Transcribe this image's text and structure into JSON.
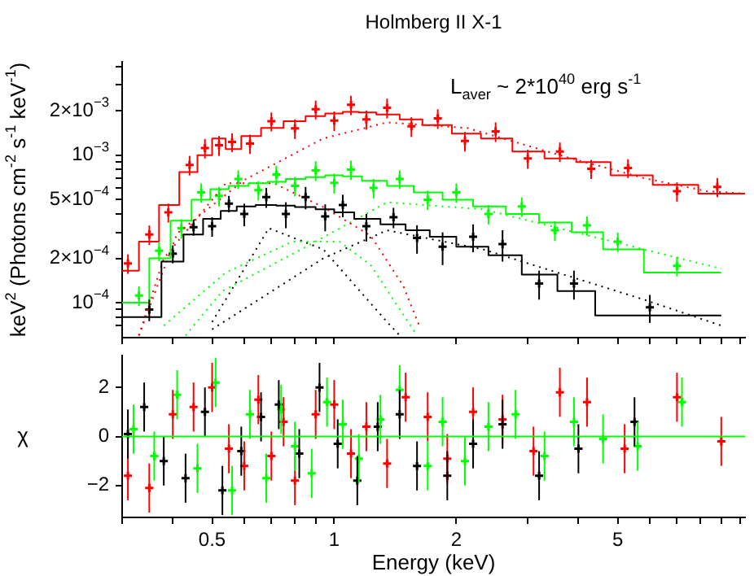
{
  "chart_data": [
    {
      "type": "line",
      "title": "Holmberg II X-1",
      "ylabel": "keV$^{2}$ (Photons cm$^{-2}$ s$^{-1}$ keV$^{-1}$)",
      "annotations": [
        "L$_{aver}$ ~ 2*10$^{40}$ erg s$^{-1}$"
      ],
      "log": "xy",
      "tick_labels": "y",
      "xlim": [
        0.3,
        10.3
      ],
      "xticks": [
        {
          "value": 0.3,
          "label": null
        },
        {
          "value": 0.4,
          "label": null
        },
        {
          "value": 0.5,
          "label": null
        },
        {
          "value": 0.6,
          "label": null
        },
        {
          "value": 0.7,
          "label": null
        },
        {
          "value": 0.8,
          "label": null
        },
        {
          "value": 0.9,
          "label": null
        },
        {
          "value": 1,
          "label": null
        },
        {
          "value": 2,
          "label": null
        },
        {
          "value": 3,
          "label": null
        },
        {
          "value": 4,
          "label": null
        },
        {
          "value": 5,
          "label": null
        },
        {
          "value": 6,
          "label": null
        },
        {
          "value": 7,
          "label": null
        },
        {
          "value": 8,
          "label": null
        },
        {
          "value": 9,
          "label": null
        },
        {
          "value": 10,
          "label": null
        }
      ],
      "ylim": [
        5.8e-05,
        0.0043
      ],
      "yticks": [
        {
          "value": 7e-05,
          "label": null
        },
        {
          "value": 8e-05,
          "label": null
        },
        {
          "value": 9e-05,
          "label": null
        },
        {
          "value": 0.0001,
          "label": "10$^{−4}$"
        },
        {
          "value": 0.0002,
          "label": "2×10$^{−4}$"
        },
        {
          "value": 0.0003,
          "label": null
        },
        {
          "value": 0.0004,
          "label": null
        },
        {
          "value": 0.0005,
          "label": "5×10$^{−4}$"
        },
        {
          "value": 0.0006,
          "label": null
        },
        {
          "value": 0.0007,
          "label": null
        },
        {
          "value": 0.0008,
          "label": null
        },
        {
          "value": 0.0009,
          "label": null
        },
        {
          "value": 0.001,
          "label": "10$^{−3}$"
        },
        {
          "value": 0.002,
          "label": "2×10$^{−3}$"
        },
        {
          "value": 0.003,
          "label": null
        },
        {
          "value": 0.004,
          "label": null
        }
      ],
      "series": [
        {
          "color": "#ff0000",
          "x": [
            0.3,
            0.33,
            0.33,
            0.37,
            0.37,
            0.415,
            0.415,
            0.46,
            0.46,
            0.5,
            0.5,
            0.54,
            0.54,
            0.59,
            0.59,
            0.66,
            0.66,
            0.75,
            0.75,
            0.85,
            0.85,
            0.95,
            0.95,
            1.05,
            1.05,
            1.15,
            1.15,
            1.27,
            1.27,
            1.45,
            1.45,
            1.65,
            1.65,
            1.95,
            1.95,
            2.3,
            2.3,
            2.75,
            2.75,
            3.3,
            3.3,
            3.95,
            3.95,
            4.8,
            4.8,
            6.1,
            6.1,
            7.9,
            7.9,
            10.3
          ],
          "values": [
            0.000165,
            0.000165,
            0.00026,
            0.00026,
            0.00046,
            0.00046,
            0.00077,
            0.00077,
            0.001,
            0.001,
            0.0013,
            0.0013,
            0.0011,
            0.0011,
            0.00135,
            0.00135,
            0.00153,
            0.00153,
            0.0017,
            0.0017,
            0.00184,
            0.00184,
            0.00192,
            0.00192,
            0.00197,
            0.00197,
            0.00195,
            0.00195,
            0.00189,
            0.00189,
            0.00175,
            0.00175,
            0.0016,
            0.0016,
            0.0014,
            0.0014,
            0.0013,
            0.0013,
            0.00106,
            0.00106,
            0.00095,
            0.00095,
            0.0009,
            0.0009,
            0.00073,
            0.00073,
            0.00063,
            0.00063,
            0.00055,
            0.00055
          ]
        },
        {
          "color": "#00ff00",
          "x": [
            0.3,
            0.35,
            0.35,
            0.395,
            0.395,
            0.445,
            0.445,
            0.495,
            0.495,
            0.55,
            0.55,
            0.615,
            0.615,
            0.685,
            0.685,
            0.76,
            0.76,
            0.85,
            0.85,
            0.95,
            0.95,
            1.05,
            1.05,
            1.17,
            1.17,
            1.35,
            1.35,
            1.57,
            1.57,
            1.85,
            1.85,
            2.2,
            2.2,
            2.65,
            2.65,
            3.2,
            3.2,
            3.85,
            3.85,
            4.6,
            4.6,
            5.8,
            5.8,
            9.0
          ],
          "values": [
            0.0001,
            0.0001,
            0.0002,
            0.0002,
            0.00036,
            0.00036,
            0.0005,
            0.0005,
            0.00059,
            0.00059,
            0.00062,
            0.00062,
            0.000645,
            0.000645,
            0.00066,
            0.00066,
            0.00069,
            0.00069,
            0.00071,
            0.00071,
            0.00073,
            0.00073,
            0.00072,
            0.00072,
            0.00067,
            0.00067,
            0.00062,
            0.00062,
            0.00056,
            0.00056,
            0.0005,
            0.0005,
            0.00045,
            0.00045,
            0.0004,
            0.0004,
            0.00035,
            0.00035,
            0.0003,
            0.0003,
            0.00023,
            0.00023,
            0.00016,
            0.00016
          ]
        },
        {
          "color": "#000000",
          "x": [
            0.3,
            0.375,
            0.375,
            0.425,
            0.425,
            0.475,
            0.475,
            0.525,
            0.525,
            0.575,
            0.575,
            0.64,
            0.64,
            0.72,
            0.72,
            0.8,
            0.8,
            0.9,
            0.9,
            1.0,
            1.0,
            1.12,
            1.12,
            1.3,
            1.3,
            1.5,
            1.5,
            1.72,
            1.72,
            2.0,
            2.0,
            2.4,
            2.4,
            2.9,
            2.9,
            3.55,
            3.55,
            4.4,
            4.4,
            9.0
          ],
          "values": [
            8e-05,
            8e-05,
            0.00019,
            0.00019,
            0.00029,
            0.00029,
            0.00037,
            0.00037,
            0.00042,
            0.00042,
            0.00045,
            0.00045,
            0.00046,
            0.00046,
            0.000455,
            0.000455,
            0.000445,
            0.000445,
            0.00043,
            0.00043,
            0.00041,
            0.00041,
            0.00037,
            0.00037,
            0.00034,
            0.00034,
            0.00031,
            0.00031,
            0.00028,
            0.00028,
            0.00024,
            0.00024,
            0.00021,
            0.00021,
            0.000155,
            0.000155,
            0.00012,
            0.00012,
            8.2e-05,
            8.2e-05
          ]
        },
        {
          "type": "line",
          "line_style": "dotted",
          "color": "#ff0000",
          "x": [
            0.33,
            0.38,
            0.54,
            0.71,
            0.94,
            1.23,
            1.48,
            1.62
          ],
          "values": [
            6e-05,
            0.0002,
            0.000645,
            0.000645,
            0.000445,
            0.000285,
            0.00013,
            7e-05
          ]
        },
        {
          "type": "line",
          "line_style": "dotted",
          "color": "#ff0000",
          "x": [
            0.33,
            0.41,
            0.6,
            0.94,
            1.35,
            2.13,
            3.7,
            5.8,
            8.3,
            10.3
          ],
          "values": [
            6e-05,
            0.000295,
            0.00068,
            0.0013,
            0.00167,
            0.00153,
            0.00098,
            0.0007,
            0.00057,
            0.00055
          ]
        },
        {
          "type": "line",
          "line_style": "dotted",
          "color": "#00ff00",
          "x": [
            0.38,
            0.54,
            0.79,
            1.03,
            1.23,
            1.6
          ],
          "values": [
            7e-05,
            0.00016,
            0.00026,
            0.00026,
            0.00018,
            6e-05
          ]
        },
        {
          "type": "line",
          "line_style": "dotted",
          "color": "#00ff00",
          "x": [
            0.43,
            0.53,
            0.83,
            1.35,
            2.33,
            5.8,
            9.0
          ],
          "values": [
            6e-05,
            0.00012,
            0.00023,
            0.00048,
            0.00043,
            0.00023,
            0.00017
          ]
        },
        {
          "type": "line",
          "line_style": "dotted",
          "color": "#000000",
          "x": [
            0.5,
            0.69,
            0.94,
            1.35,
            1.45
          ],
          "values": [
            7.4e-05,
            0.00032,
            0.00023,
            7.4e-05,
            6e-05
          ]
        },
        {
          "type": "line",
          "line_style": "dotted",
          "color": "#000000",
          "x": [
            0.5,
            0.94,
            1.35,
            2.33,
            5.8,
            9.0
          ],
          "values": [
            6.6e-05,
            0.0002,
            0.00031,
            0.00023,
            0.000105,
            7e-05
          ]
        },
        {
          "type": "scatter",
          "marker": "cross",
          "color": "#ff0000",
          "x": [
            0.31,
            0.35,
            0.39,
            0.44,
            0.48,
            0.52,
            0.56,
            0.62,
            0.7,
            0.8,
            0.9,
            1.0,
            1.1,
            1.2,
            1.35,
            1.55,
            1.8,
            2.1,
            2.5,
            3.0,
            3.6,
            4.3,
            5.3,
            7.0,
            8.8
          ],
          "values": [
            0.000185,
            0.00029,
            0.00041,
            0.00086,
            0.00112,
            0.00117,
            0.00123,
            0.0012,
            0.0017,
            0.00152,
            0.00205,
            0.00172,
            0.0022,
            0.00175,
            0.0021,
            0.00157,
            0.00178,
            0.00125,
            0.00145,
            0.00095,
            0.00106,
            0.00081,
            0.00082,
            0.00057,
            0.00061
          ],
          "errors": [
            2.8e-05,
            4.4e-05,
            6e-05,
            0.00013,
            0.00017,
            0.00018,
            0.00018,
            0.00018,
            0.00025,
            0.00023,
            0.0003,
            0.00026,
            0.00033,
            0.00026,
            0.00032,
            0.00024,
            0.00027,
            0.00019,
            0.00022,
            0.00014,
            0.00016,
            0.00012,
            0.00012,
            8.5e-05,
            9e-05
          ]
        },
        {
          "type": "scatter",
          "marker": "cross",
          "color": "#00ff00",
          "x": [
            0.33,
            0.37,
            0.42,
            0.47,
            0.52,
            0.58,
            0.65,
            0.72,
            0.8,
            0.9,
            1.0,
            1.1,
            1.25,
            1.45,
            1.7,
            2.0,
            2.4,
            2.9,
            3.5,
            4.2,
            5.0,
            7.0
          ],
          "values": [
            0.000112,
            0.000225,
            0.00032,
            0.00056,
            0.00053,
            0.00069,
            0.00058,
            0.00074,
            0.00062,
            0.00079,
            0.00065,
            0.0008,
            0.0006,
            0.00069,
            0.0005,
            0.00056,
            0.0004,
            0.00045,
            0.00031,
            0.000335,
            0.00026,
            0.000178
          ],
          "errors": [
            1.7e-05,
            3.4e-05,
            4.8e-05,
            8.4e-05,
            8e-05,
            0.0001,
            8.7e-05,
            0.00011,
            9.3e-05,
            0.00012,
            0.0001,
            0.00012,
            9e-05,
            0.0001,
            7.5e-05,
            8.4e-05,
            6e-05,
            6.8e-05,
            4.7e-05,
            5e-05,
            3.9e-05,
            2.7e-05
          ]
        },
        {
          "type": "scatter",
          "marker": "cross",
          "color": "#000000",
          "x": [
            0.35,
            0.4,
            0.45,
            0.5,
            0.55,
            0.6,
            0.68,
            0.76,
            0.85,
            0.95,
            1.05,
            1.2,
            1.4,
            1.6,
            1.85,
            2.2,
            2.6,
            3.2,
            3.9,
            6.0
          ],
          "values": [
            9e-05,
            0.000215,
            0.000325,
            0.00033,
            0.00047,
            0.0004,
            0.00052,
            0.0004,
            0.00052,
            0.000385,
            0.00046,
            0.00033,
            0.00038,
            0.000275,
            0.00024,
            0.00028,
            0.00025,
            0.000135,
            0.000135,
            9.3e-05
          ],
          "errors": [
            1.5e-05,
            3e-05,
            4e-05,
            5e-05,
            6e-05,
            7e-05,
            8e-05,
            8e-05,
            9e-05,
            8e-05,
            8e-05,
            7e-05,
            6e-05,
            6e-05,
            6e-05,
            6e-05,
            6e-05,
            3e-05,
            3e-05,
            2e-05
          ]
        }
      ]
    },
    {
      "type": "scatter",
      "xlabel": "Energy (keV)",
      "ylabel": "χ",
      "log": "x",
      "xlim": [
        0.3,
        10.3
      ],
      "xticks": [
        {
          "value": 0.3,
          "label": null
        },
        {
          "value": 0.4,
          "label": null
        },
        0.5,
        {
          "value": 0.6,
          "label": null
        },
        {
          "value": 0.7,
          "label": null
        },
        {
          "value": 0.8,
          "label": null
        },
        {
          "value": 0.9,
          "label": null
        },
        1,
        2,
        {
          "value": 3,
          "label": null
        },
        {
          "value": 4,
          "label": null
        },
        5,
        {
          "value": 6,
          "label": null
        },
        {
          "value": 7,
          "label": null
        },
        {
          "value": 8,
          "label": null
        },
        {
          "value": 9,
          "label": null
        },
        {
          "value": 10,
          "label": null
        }
      ],
      "ylim": [
        -3.3,
        3.3
      ],
      "yticks": [
        {
          "value": -2,
          "label": "−2"
        },
        0,
        2
      ],
      "ref_lines": [
        {
          "axis": "y",
          "value": 0,
          "color": "#00ff00"
        }
      ],
      "series": [
        {
          "marker": "cross",
          "color": "#ff0000",
          "x": [
            0.31,
            0.35,
            0.4,
            0.45,
            0.5,
            0.55,
            0.6,
            0.65,
            0.7,
            0.75,
            0.8,
            0.9,
            1.0,
            1.1,
            1.2,
            1.35,
            1.5,
            1.7,
            1.9,
            2.2,
            2.6,
            3.1,
            3.6,
            4.2,
            5.2,
            7.0,
            9.0
          ],
          "values": [
            -1.6,
            -2.1,
            0.9,
            1.2,
            2.0,
            -0.5,
            -1.2,
            1.5,
            -0.8,
            0.6,
            -1.8,
            0.9,
            1.3,
            -0.7,
            0.4,
            -1.1,
            1.6,
            0.8,
            -0.9,
            1.0,
            0.7,
            -0.6,
            1.8,
            1.4,
            -0.5,
            1.6,
            -0.2
          ],
          "errors": [
            1,
            1,
            1,
            1,
            1,
            1,
            1,
            1,
            1,
            1,
            1,
            1,
            1,
            1,
            1,
            1,
            1,
            1,
            1,
            1,
            1,
            1,
            1,
            1,
            1,
            1,
            1
          ]
        },
        {
          "marker": "cross",
          "color": "#00ff00",
          "x": [
            0.32,
            0.36,
            0.41,
            0.46,
            0.51,
            0.56,
            0.62,
            0.68,
            0.74,
            0.8,
            0.88,
            0.96,
            1.05,
            1.15,
            1.3,
            1.45,
            1.7,
            1.85,
            2.1,
            2.4,
            2.8,
            3.3,
            3.9,
            4.6,
            5.6,
            7.2
          ],
          "values": [
            0.3,
            -0.8,
            1.7,
            -1.3,
            2.2,
            -2.2,
            0.9,
            -1.7,
            1.1,
            -0.4,
            -1.5,
            1.4,
            0.5,
            -0.9,
            0.7,
            1.9,
            -1.2,
            0.6,
            -1.0,
            0.4,
            0.9,
            -0.8,
            0.6,
            -0.1,
            -0.4,
            1.4
          ],
          "errors": [
            1,
            1,
            1,
            1,
            1,
            1,
            1,
            1,
            1,
            1,
            1,
            1,
            1,
            1,
            1,
            1,
            1,
            1,
            1,
            1,
            1,
            1,
            1,
            1,
            1,
            1
          ]
        },
        {
          "marker": "cross",
          "color": "#000000",
          "x": [
            0.31,
            0.34,
            0.38,
            0.43,
            0.48,
            0.53,
            0.59,
            0.66,
            0.73,
            0.82,
            0.92,
            1.02,
            1.14,
            1.28,
            1.45,
            1.6,
            1.9,
            2.2,
            2.6,
            3.2,
            4.0,
            5.5
          ],
          "values": [
            0.1,
            1.2,
            -1.0,
            -1.7,
            1.0,
            -2.2,
            -0.6,
            0.8,
            1.3,
            -0.7,
            2.0,
            -0.3,
            -1.8,
            0.4,
            0.9,
            -1.2,
            -1.6,
            -0.3,
            0.5,
            -1.6,
            -0.5,
            0.6
          ],
          "errors": [
            1,
            1,
            1,
            1,
            1,
            1,
            1,
            1,
            1,
            1,
            1,
            1,
            1,
            1,
            1,
            1,
            1,
            1,
            1,
            1,
            1,
            1
          ]
        }
      ]
    }
  ]
}
